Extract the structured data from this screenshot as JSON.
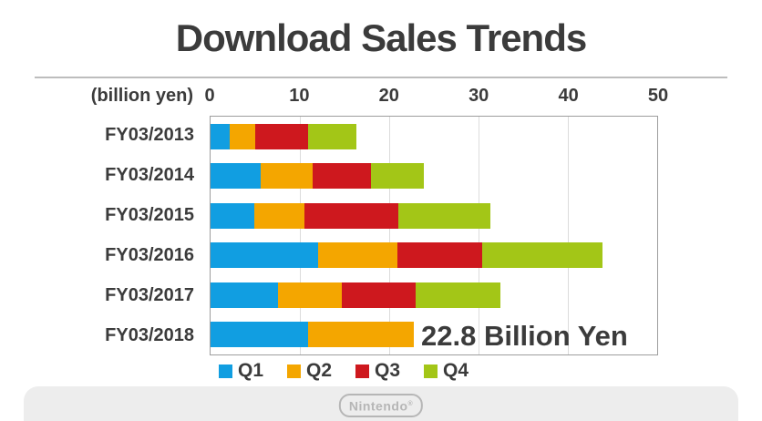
{
  "title": "Download Sales Trends",
  "axis": {
    "unit_label": "(billion yen)",
    "ticks": [
      "0",
      "10",
      "20",
      "30",
      "40",
      "50"
    ],
    "max": 50
  },
  "chart_data": {
    "type": "bar",
    "orientation": "horizontal",
    "stacked": true,
    "title": "Download Sales Trends",
    "xlabel": "(billion yen)",
    "xlim": [
      0,
      50
    ],
    "grid": true,
    "legend_position": "bottom",
    "categories": [
      "FY03/2013",
      "FY03/2014",
      "FY03/2015",
      "FY03/2016",
      "FY03/2017",
      "FY03/2018"
    ],
    "series": [
      {
        "name": "Q1",
        "color": "#119EE1",
        "values": [
          2.1,
          5.6,
          4.9,
          12.0,
          7.6,
          10.9
        ]
      },
      {
        "name": "Q2",
        "color": "#F4A600",
        "values": [
          2.9,
          5.8,
          5.6,
          8.9,
          7.1,
          11.9
        ]
      },
      {
        "name": "Q3",
        "color": "#CE181E",
        "values": [
          5.9,
          6.6,
          10.5,
          9.5,
          8.3,
          0
        ]
      },
      {
        "name": "Q4",
        "color": "#A3C617",
        "values": [
          5.4,
          5.9,
          10.3,
          13.5,
          9.5,
          0
        ]
      }
    ],
    "totals": [
      16.3,
      23.9,
      31.3,
      43.9,
      32.5,
      22.8
    ],
    "annotation": {
      "text": "22.8 Billion Yen",
      "row": "FY03/2018"
    }
  },
  "legend": {
    "items": [
      "Q1",
      "Q2",
      "Q3",
      "Q4"
    ]
  },
  "footer": {
    "logo_text": "Nintendo",
    "registered_mark": "®"
  },
  "colors": {
    "q1_blue": "#119EE1",
    "q2_orange": "#F4A600",
    "q3_red": "#CE181E",
    "q4_green": "#A3C617",
    "text_dark": "#3B3B3B",
    "panel_gray": "#EDEDED",
    "logo_gray": "#B6B6B6"
  }
}
